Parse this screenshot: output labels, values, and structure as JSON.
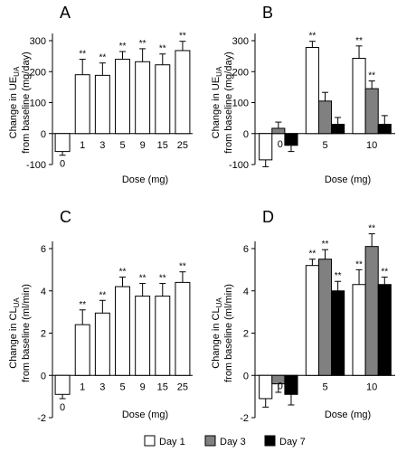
{
  "legend": [
    {
      "label": "Day 1",
      "color": "#ffffff"
    },
    {
      "label": "Day 3",
      "color": "#808080"
    },
    {
      "label": "Day 7",
      "color": "#000000"
    }
  ],
  "chart_data": [
    {
      "panel": "A",
      "type": "bar",
      "ylabel_line1": "Change in UE",
      "ylabel_sub": "UA",
      "ylabel_line1_suffix": "",
      "ylabel_line2": "from baseline (mg/day)",
      "ylabel_unit": "(mg/day)",
      "xlabel": "Dose (mg)",
      "ylim": [
        -100,
        300
      ],
      "yticks": [
        -100,
        0,
        100,
        200,
        300
      ],
      "categories": [
        "0",
        "1",
        "3",
        "5",
        "9",
        "15",
        "25"
      ],
      "series": [
        {
          "values": [
            -58,
            190,
            188,
            240,
            232,
            222,
            268
          ],
          "errors": [
            12,
            50,
            40,
            25,
            42,
            35,
            30
          ],
          "significance": [
            "",
            "**",
            "**",
            "**",
            "**",
            "**",
            "**"
          ],
          "color": "#ffffff"
        }
      ]
    },
    {
      "panel": "B",
      "type": "bar",
      "ylabel_line1": "Change in UE",
      "ylabel_sub": "UA",
      "ylabel_line2": "from baseline (mg/day)",
      "xlabel": "Dose (mg)",
      "ylim": [
        -100,
        300
      ],
      "yticks": [
        -100,
        0,
        100,
        200,
        300
      ],
      "categories": [
        "0",
        "5",
        "10"
      ],
      "series": [
        {
          "name": "Day 1",
          "values": [
            -85,
            278,
            243
          ],
          "errors": [
            22,
            20,
            40
          ],
          "significance": [
            "",
            "**",
            "**"
          ],
          "color": "#ffffff"
        },
        {
          "name": "Day 3",
          "values": [
            17,
            105,
            145
          ],
          "errors": [
            20,
            28,
            25
          ],
          "significance": [
            "",
            "",
            "**"
          ],
          "color": "#808080"
        },
        {
          "name": "Day 7",
          "values": [
            -38,
            30,
            30
          ],
          "errors": [
            20,
            22,
            28
          ],
          "significance": [
            "",
            "",
            ""
          ],
          "color": "#000000"
        }
      ]
    },
    {
      "panel": "C",
      "type": "bar",
      "ylabel_line1": "Change in CL",
      "ylabel_sub": "UA",
      "ylabel_line2": "from baseline (ml/min)",
      "xlabel": "Dose (mg)",
      "ylim": [
        -2,
        6
      ],
      "yticks": [
        -2,
        0,
        2,
        4,
        6
      ],
      "categories": [
        "0",
        "1",
        "3",
        "5",
        "9",
        "15",
        "25"
      ],
      "series": [
        {
          "values": [
            -0.9,
            2.4,
            2.95,
            4.2,
            3.75,
            3.75,
            4.4
          ],
          "errors": [
            0.2,
            0.7,
            0.6,
            0.45,
            0.6,
            0.6,
            0.5
          ],
          "significance": [
            "",
            "**",
            "**",
            "**",
            "**",
            "**",
            "**"
          ],
          "color": "#ffffff"
        }
      ]
    },
    {
      "panel": "D",
      "type": "bar",
      "ylabel_line1": "Change in CL",
      "ylabel_sub": "UA",
      "ylabel_line2": "from baseline (ml/min)",
      "xlabel": "Dose (mg)",
      "ylim": [
        -2,
        6
      ],
      "yticks": [
        -2,
        0,
        2,
        4,
        6
      ],
      "categories": [
        "0",
        "5",
        "10"
      ],
      "series": [
        {
          "name": "Day 1",
          "values": [
            -1.1,
            5.2,
            4.3
          ],
          "errors": [
            0.4,
            0.3,
            0.7
          ],
          "significance": [
            "",
            "**",
            "**"
          ],
          "color": "#ffffff"
        },
        {
          "name": "Day 3",
          "values": [
            -0.4,
            5.5,
            6.1
          ],
          "errors": [
            0.4,
            0.45,
            0.6
          ],
          "significance": [
            "",
            "**",
            "**"
          ],
          "color": "#808080"
        },
        {
          "name": "Day 7",
          "values": [
            -0.9,
            4.0,
            4.3
          ],
          "errors": [
            0.5,
            0.45,
            0.35
          ],
          "significance": [
            "",
            "**",
            "**"
          ],
          "color": "#000000"
        }
      ]
    }
  ]
}
